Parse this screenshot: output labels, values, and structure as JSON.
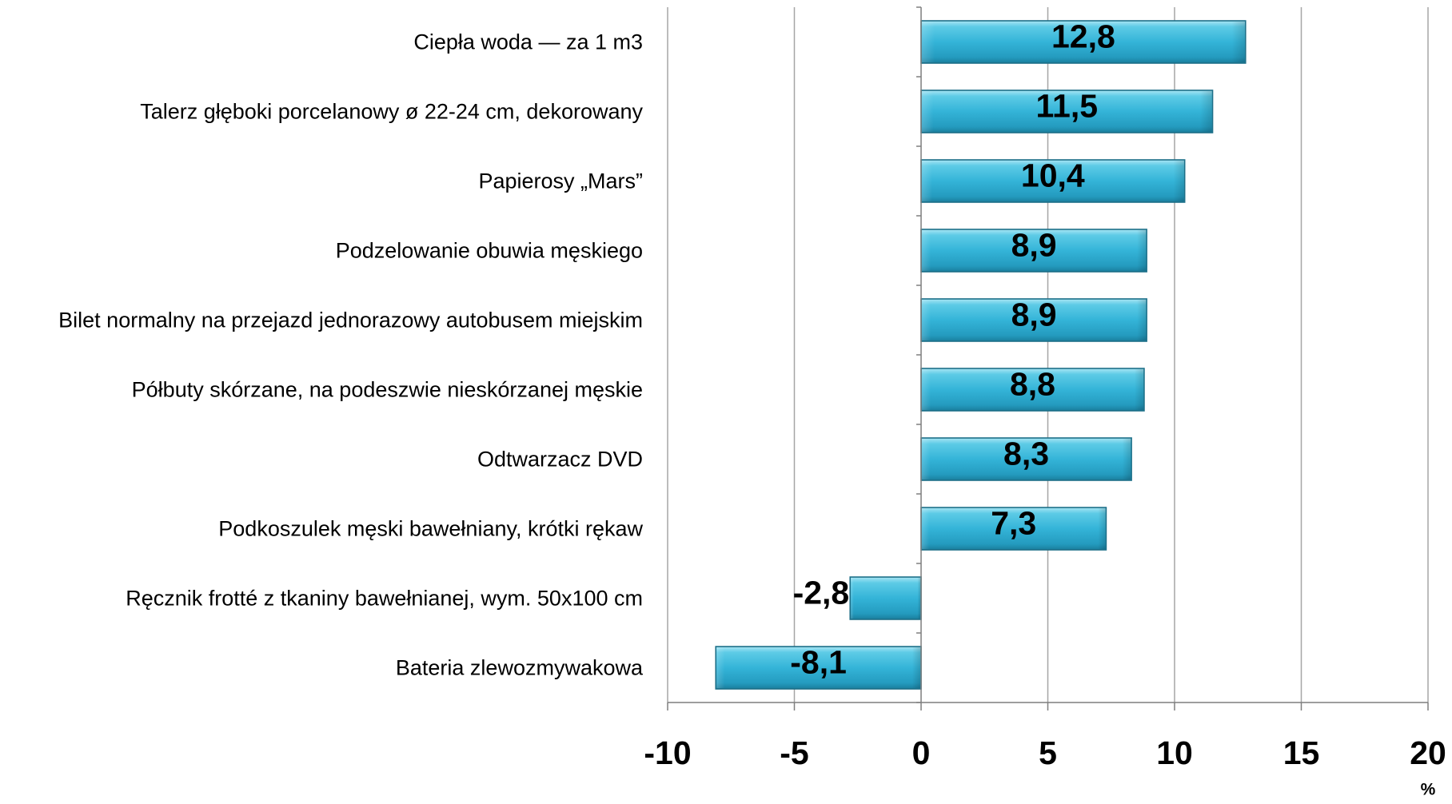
{
  "chart_data": {
    "type": "bar",
    "orientation": "horizontal",
    "categories": [
      "Ciepła woda — za 1 m3",
      "Talerz głęboki porcelanowy ø 22-24 cm, dekorowany",
      "Papierosy „Mars”",
      "Podzelowanie obuwia męskiego",
      "Bilet normalny na przejazd jednorazowy autobusem miejskim",
      "Półbuty skórzane, na podeszwie nieskórzanej męskie",
      "Odtwarzacz DVD",
      "Podkoszulek męski bawełniany, krótki rękaw",
      "Ręcznik frotté z tkaniny bawełnianej, wym. 50x100 cm",
      "Bateria zlewozmywakowa"
    ],
    "values": [
      12.8,
      11.5,
      10.4,
      8.9,
      8.9,
      8.8,
      8.3,
      7.3,
      -2.8,
      -8.1
    ],
    "data_labels": [
      "12,8",
      "11,5",
      "10,4",
      "8,9",
      "8,9",
      "8,8",
      "8,3",
      "7,3",
      "-2,8",
      "-8,1"
    ],
    "xlabel": "%",
    "xlim": [
      -10,
      20
    ],
    "xticks": [
      -10,
      -5,
      0,
      5,
      10,
      15,
      20
    ],
    "grid": "vertical major gridlines",
    "legend": "none",
    "colors": {
      "bar": "#34b4d8",
      "bar_border": "#1d6f88"
    }
  }
}
